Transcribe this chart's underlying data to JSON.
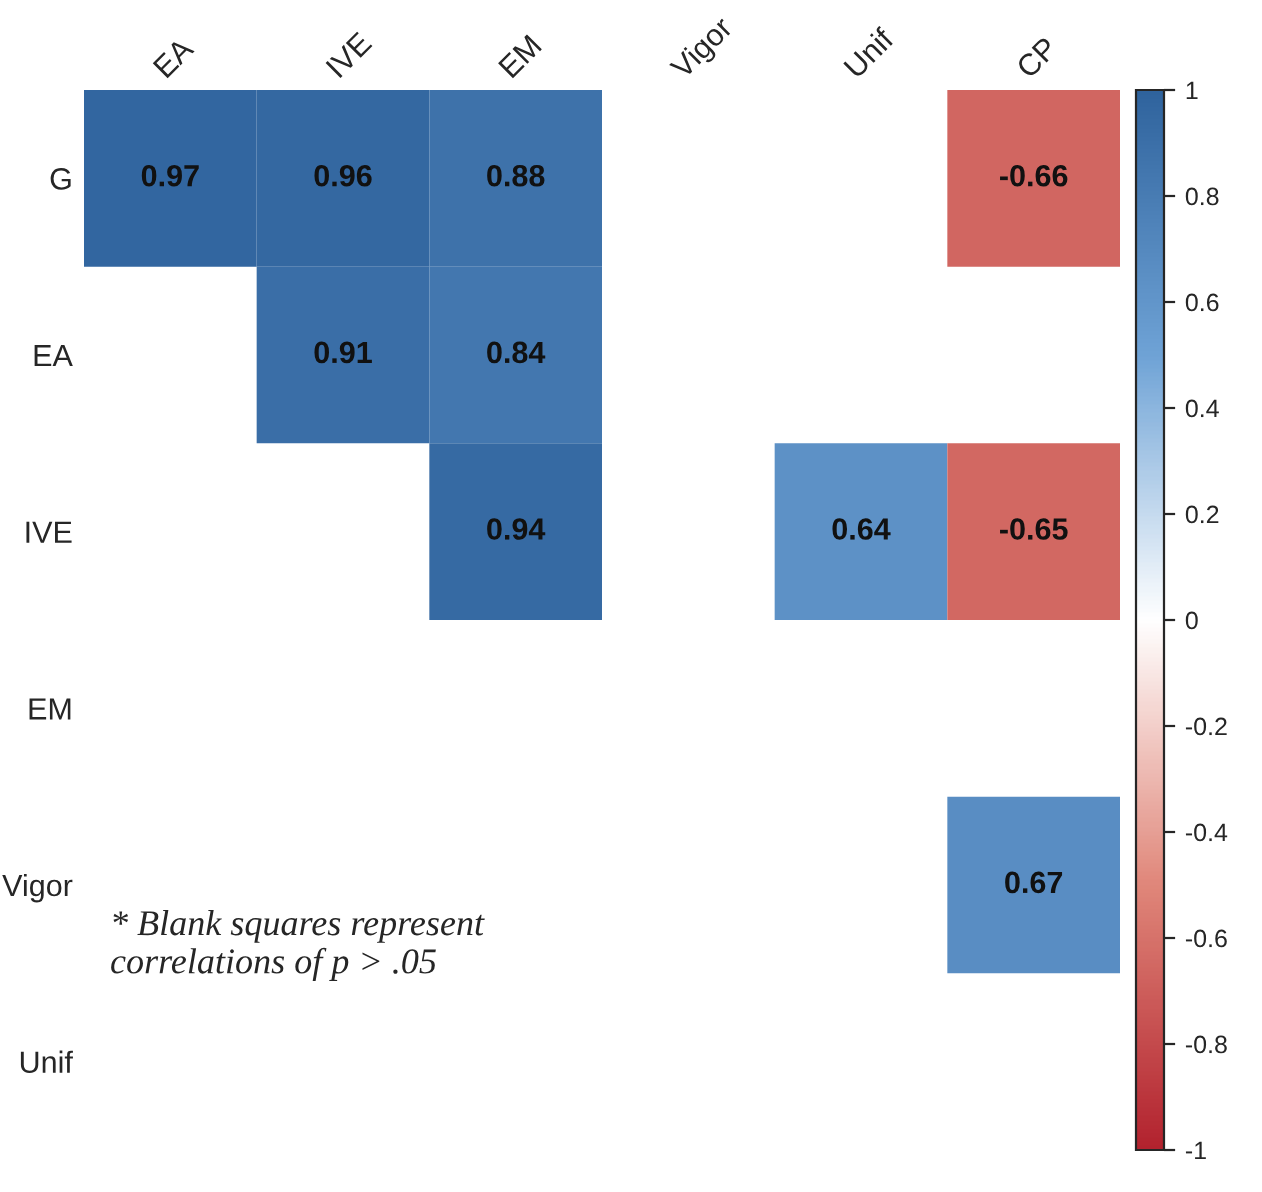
{
  "chart_data": {
    "type": "heatmap",
    "categories": [
      "EA",
      "IVE",
      "EM",
      "Vigor",
      "Unif",
      "CP"
    ],
    "y_categories": [
      "G",
      "EA",
      "IVE",
      "EM",
      "Vigor",
      "Unif"
    ],
    "cells": [
      [
        0.97,
        0.96,
        0.88,
        null,
        null,
        -0.66
      ],
      [
        null,
        0.91,
        0.84,
        null,
        null,
        null
      ],
      [
        null,
        null,
        0.94,
        null,
        0.64,
        -0.65
      ],
      [
        null,
        null,
        null,
        null,
        null,
        null
      ],
      [
        null,
        null,
        null,
        null,
        null,
        0.67
      ],
      [
        null,
        null,
        null,
        null,
        null,
        null
      ]
    ],
    "data_labels": true,
    "clim": [
      -1,
      1
    ],
    "cticks": [
      1,
      0.8,
      0.6,
      0.4,
      0.2,
      0,
      -0.2,
      -0.4,
      -0.6,
      -0.8,
      -1
    ],
    "annotations": [
      "* Blank squares represent\ncorrelations of p > .05"
    ]
  }
}
